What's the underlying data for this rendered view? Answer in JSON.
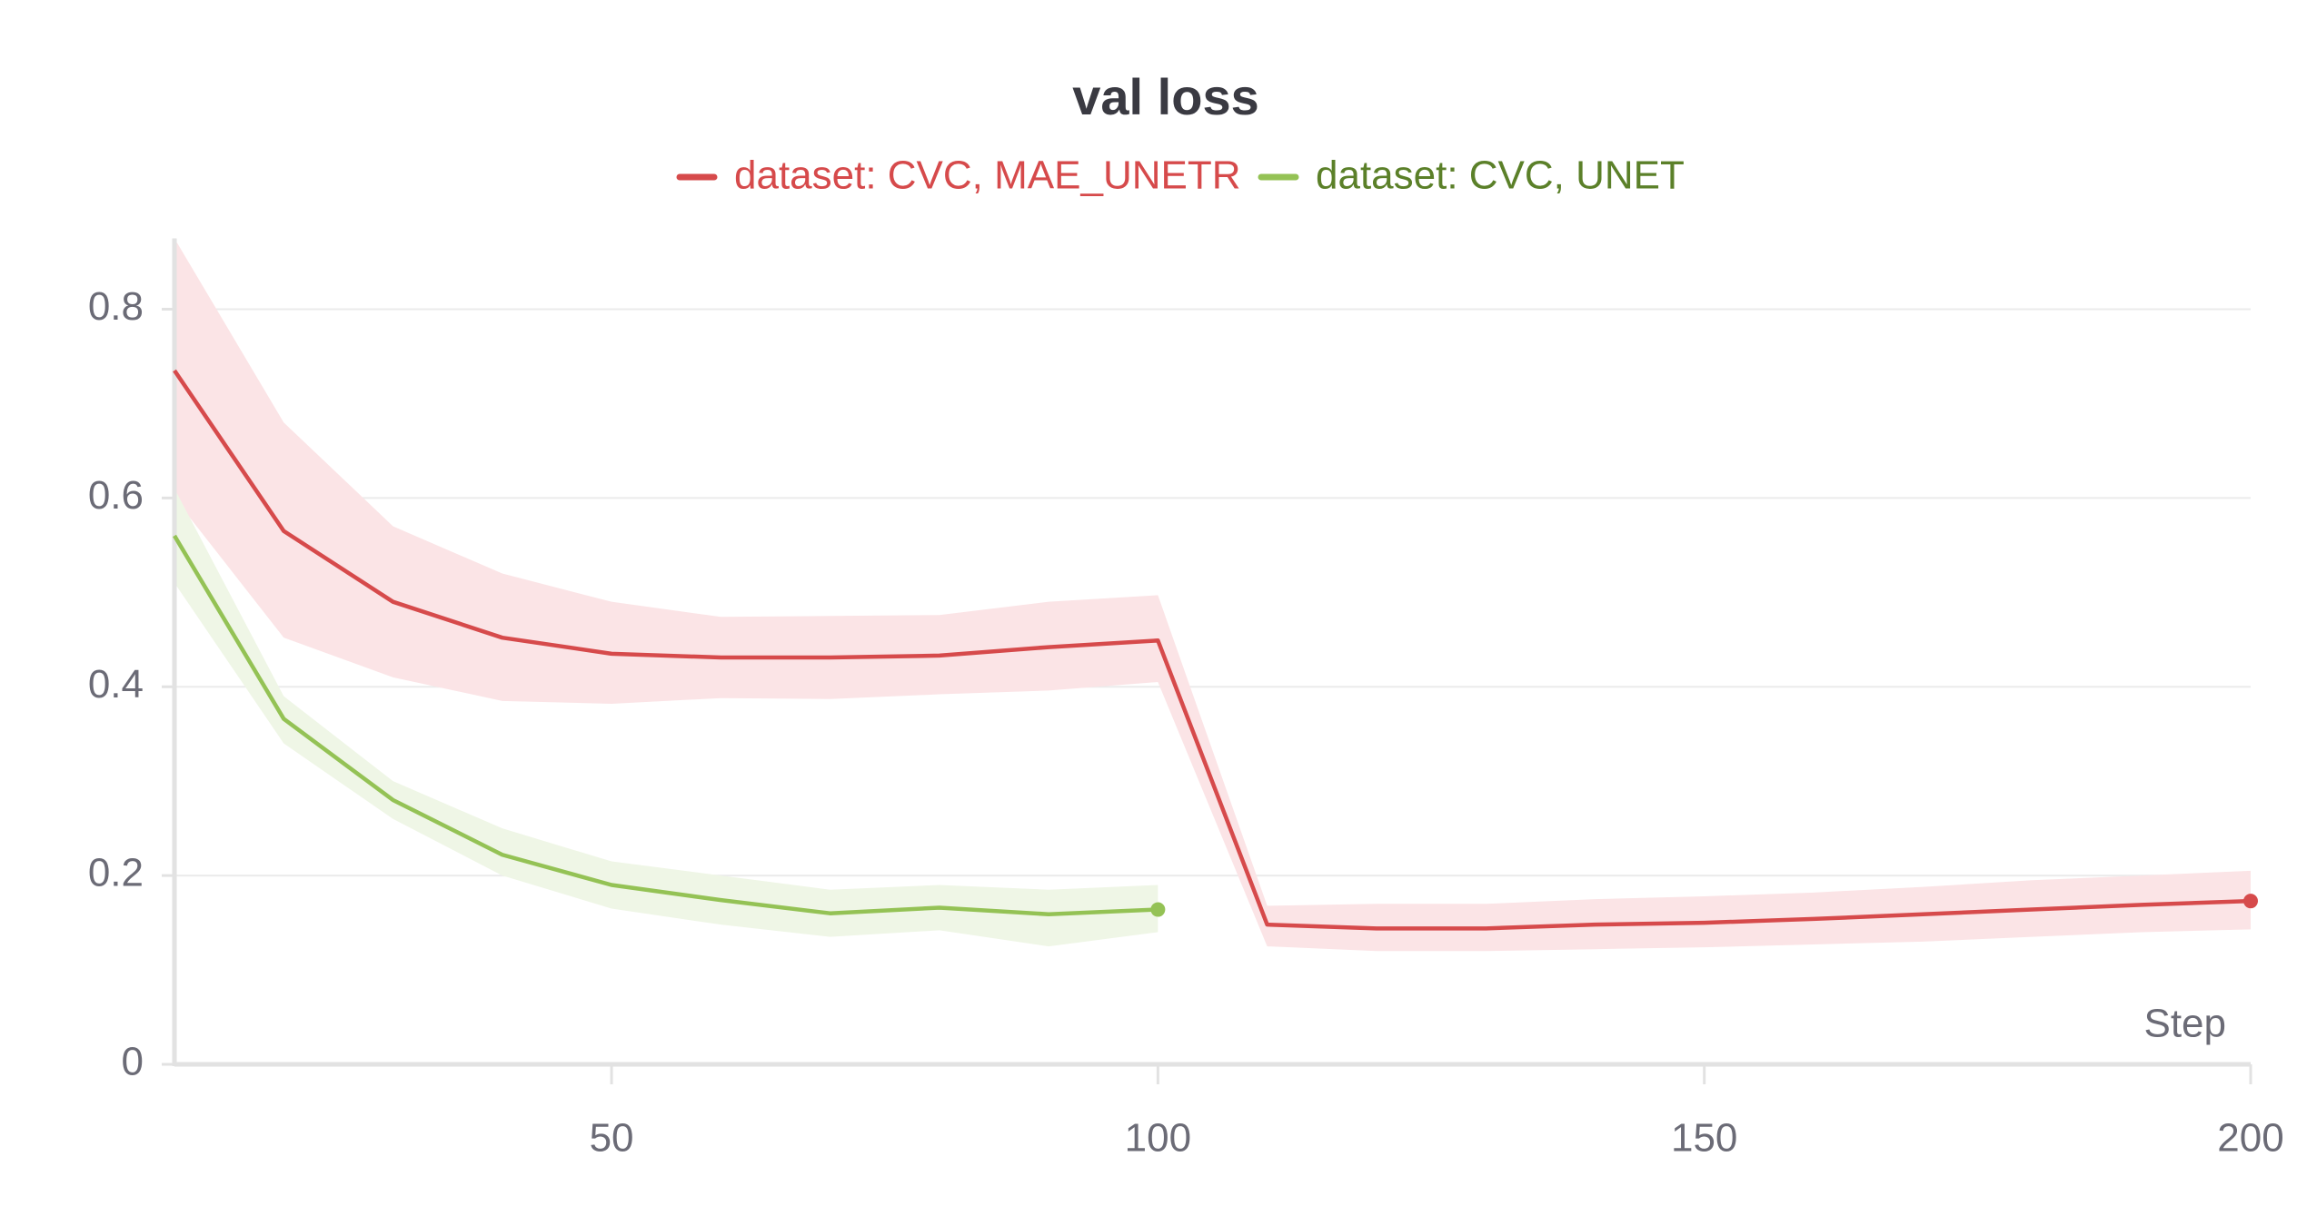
{
  "chart_data": {
    "type": "line",
    "title": "val loss",
    "x_label": "Step",
    "x": [
      10,
      20,
      30,
      40,
      50,
      60,
      70,
      80,
      90,
      100,
      110,
      120,
      130,
      140,
      150,
      160,
      170,
      180,
      190,
      200
    ],
    "series": [
      {
        "name": "dataset: CVC, MAE_UNETR",
        "color": "#d64a4b",
        "band_color": "#fbe4e6",
        "text_color": "#d64a4b",
        "values": [
          0.735,
          0.565,
          0.49,
          0.452,
          0.435,
          0.431,
          0.431,
          0.433,
          0.442,
          0.449,
          0.148,
          0.144,
          0.144,
          0.148,
          0.15,
          0.154,
          0.159,
          0.164,
          0.169,
          0.173
        ],
        "max": [
          0.875,
          0.68,
          0.57,
          0.52,
          0.49,
          0.474,
          0.475,
          0.476,
          0.49,
          0.497,
          0.168,
          0.17,
          0.17,
          0.175,
          0.178,
          0.182,
          0.188,
          0.195,
          0.2,
          0.205
        ],
        "min": [
          0.6,
          0.452,
          0.41,
          0.385,
          0.382,
          0.388,
          0.387,
          0.392,
          0.396,
          0.405,
          0.125,
          0.12,
          0.12,
          0.122,
          0.124,
          0.127,
          0.13,
          0.135,
          0.14,
          0.143
        ]
      },
      {
        "name": "dataset: CVC, UNET",
        "color": "#94c255",
        "band_color": "#eff6e6",
        "text_color": "#5b8029",
        "values": [
          0.56,
          0.366,
          0.28,
          0.222,
          0.19,
          0.174,
          0.16,
          0.166,
          0.159,
          0.164,
          null,
          null,
          null,
          null,
          null,
          null,
          null,
          null,
          null,
          null
        ],
        "max": [
          0.61,
          0.39,
          0.3,
          0.25,
          0.215,
          0.2,
          0.185,
          0.19,
          0.185,
          0.19,
          null,
          null,
          null,
          null,
          null,
          null,
          null,
          null,
          null,
          null
        ],
        "min": [
          0.51,
          0.34,
          0.26,
          0.2,
          0.165,
          0.148,
          0.135,
          0.142,
          0.125,
          0.14,
          null,
          null,
          null,
          null,
          null,
          null,
          null,
          null,
          null,
          null
        ]
      }
    ],
    "xlim": [
      10,
      200
    ],
    "xticks": [
      50,
      100,
      150,
      200
    ],
    "ylim": [
      0,
      0.875
    ],
    "yticks": [
      0,
      0.2,
      0.4,
      0.6,
      0.8
    ],
    "grid": true,
    "legend": "top"
  }
}
